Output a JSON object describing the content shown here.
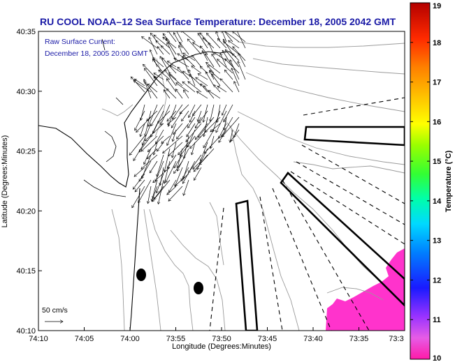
{
  "chart_data": {
    "type": "map",
    "title": "RU COOL   NOAA–12  Sea Surface Temperature:  December 18, 2005 2042 GMT",
    "legend": {
      "line1": "Raw Surface Current:",
      "line2": "December 18, 2005 20:00 GMT"
    },
    "xlabel": "Longitude (Degrees:Minutes)",
    "ylabel": "Latitude (Degrees:Minutes)",
    "x_ticks": [
      "74:10",
      "74:05",
      "74:00",
      "73:55",
      "73:50",
      "73:45",
      "73:40",
      "73:35",
      "73:3"
    ],
    "y_ticks": [
      "40:35",
      "40:30",
      "40:25",
      "40:20",
      "40:15",
      "40:10"
    ],
    "colorbar": {
      "label": "Temperature (°C)",
      "min": 10,
      "max": 19,
      "ticks": [
        "19",
        "18",
        "17",
        "16",
        "15",
        "14",
        "13",
        "12",
        "11",
        "10"
      ]
    },
    "scale_arrow_label": "50 cm/s"
  }
}
